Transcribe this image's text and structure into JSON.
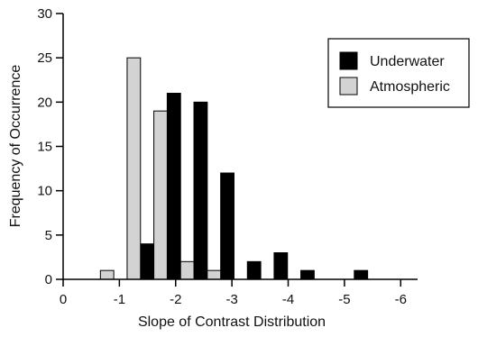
{
  "chart_data": {
    "type": "bar",
    "xlabel": "Slope of Contrast Distribution",
    "ylabel": "Frequency of Occurrence",
    "xlim": [
      0,
      -6.3
    ],
    "ylim": [
      0,
      30
    ],
    "x_ticks": [
      {
        "value": 0,
        "label": "0"
      },
      {
        "value": -1,
        "label": "-1"
      },
      {
        "value": -2,
        "label": "-2"
      },
      {
        "value": -3,
        "label": "-3"
      },
      {
        "value": -4,
        "label": "-4"
      },
      {
        "value": -5,
        "label": "-5"
      },
      {
        "value": -6,
        "label": "-6"
      }
    ],
    "y_ticks": [
      {
        "value": 0,
        "label": "0"
      },
      {
        "value": 5,
        "label": "5"
      },
      {
        "value": 10,
        "label": "10"
      },
      {
        "value": 15,
        "label": "15"
      },
      {
        "value": 20,
        "label": "20"
      },
      {
        "value": 25,
        "label": "25"
      },
      {
        "value": 30,
        "label": "30"
      }
    ],
    "bin_width": 0.475,
    "x_bin_centers": [
      -0.9,
      -1.375,
      -1.85,
      -2.325,
      -2.8,
      -3.275,
      -3.75,
      -4.225,
      -4.7,
      -5.175,
      -5.65
    ],
    "series": [
      {
        "name": "Underwater",
        "color": "#000000",
        "values": [
          0,
          4,
          21,
          20,
          12,
          2,
          3,
          1,
          0,
          1,
          0
        ]
      },
      {
        "name": "Atmospheric",
        "color": "#d3d3d3",
        "values": [
          1,
          25,
          19,
          2,
          1,
          0,
          0,
          0,
          0,
          0,
          0
        ]
      }
    ],
    "legend_position": "top-right",
    "grid": false
  }
}
